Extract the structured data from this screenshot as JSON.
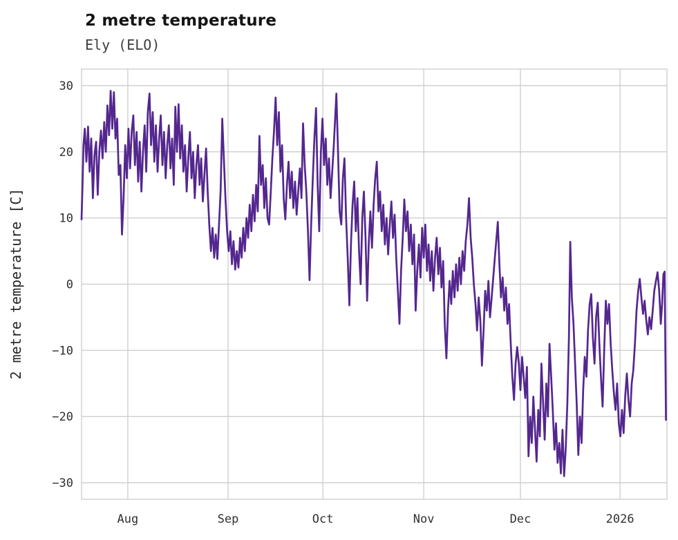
{
  "header": {
    "title": "2 metre temperature",
    "subtitle": "Ely (ELO)"
  },
  "chart_data": {
    "type": "line",
    "title": "2 metre temperature",
    "subtitle": "Ely (ELO)",
    "xlabel": "",
    "ylabel": "2 metre temperature [C]",
    "series_name": "2 metre temperature at Ely (ELO)",
    "line_color": "#54278f",
    "grid_color": "#cccccc",
    "grid": true,
    "legend": "none",
    "ylim": [
      -32.5,
      32.5
    ],
    "xlim_days": [
      0,
      181
    ],
    "yticks": [
      {
        "value": 30,
        "label": "30"
      },
      {
        "value": 20,
        "label": "20"
      },
      {
        "value": 10,
        "label": "10"
      },
      {
        "value": 0,
        "label": "0"
      },
      {
        "value": -10,
        "label": "−10"
      },
      {
        "value": -20,
        "label": "−20"
      },
      {
        "value": -30,
        "label": "−30"
      }
    ],
    "xticks": [
      {
        "label": "Aug",
        "day": 14.3
      },
      {
        "label": "Sep",
        "day": 45.3
      },
      {
        "label": "Oct",
        "day": 74.6
      },
      {
        "label": "Nov",
        "day": 105.8
      },
      {
        "label": "Dec",
        "day": 135.7
      },
      {
        "label": "2026",
        "day": 166.5
      }
    ],
    "points": [
      [
        0,
        9.8
      ],
      [
        0.3,
        15
      ],
      [
        0.6,
        21
      ],
      [
        1,
        23.5
      ],
      [
        1.5,
        18.5
      ],
      [
        2,
        23.8
      ],
      [
        2.5,
        17
      ],
      [
        3,
        22
      ],
      [
        3.5,
        13
      ],
      [
        4,
        19.5
      ],
      [
        4.5,
        21.5
      ],
      [
        5,
        13.5
      ],
      [
        5.5,
        20
      ],
      [
        6,
        23.2
      ],
      [
        6.5,
        19
      ],
      [
        7,
        24.5
      ],
      [
        7.5,
        20
      ],
      [
        8,
        27
      ],
      [
        8.5,
        22.5
      ],
      [
        9,
        29.2
      ],
      [
        9.5,
        23.5
      ],
      [
        10,
        29
      ],
      [
        10.5,
        22
      ],
      [
        11,
        25
      ],
      [
        11.5,
        16.5
      ],
      [
        12,
        18
      ],
      [
        12.5,
        7.5
      ],
      [
        13,
        13
      ],
      [
        13.5,
        21
      ],
      [
        14,
        16
      ],
      [
        14.5,
        23.5
      ],
      [
        15,
        17.5
      ],
      [
        15.5,
        23
      ],
      [
        16,
        25.5
      ],
      [
        16.5,
        18
      ],
      [
        17,
        23
      ],
      [
        17.5,
        15.5
      ],
      [
        18,
        21.5
      ],
      [
        18.5,
        14
      ],
      [
        19,
        20
      ],
      [
        19.5,
        24
      ],
      [
        20,
        17
      ],
      [
        20.5,
        26
      ],
      [
        21,
        28.8
      ],
      [
        21.5,
        21
      ],
      [
        22,
        26
      ],
      [
        22.5,
        18.5
      ],
      [
        23,
        24
      ],
      [
        23.5,
        17
      ],
      [
        24,
        22
      ],
      [
        24.5,
        25.5
      ],
      [
        25,
        18
      ],
      [
        25.5,
        23
      ],
      [
        26,
        16
      ],
      [
        26.5,
        21
      ],
      [
        27,
        24
      ],
      [
        27.5,
        17.5
      ],
      [
        28,
        22
      ],
      [
        28.5,
        15
      ],
      [
        29,
        26.8
      ],
      [
        29.5,
        20
      ],
      [
        30,
        27.2
      ],
      [
        30.5,
        19
      ],
      [
        31,
        24
      ],
      [
        31.5,
        17
      ],
      [
        32,
        21
      ],
      [
        32.5,
        14
      ],
      [
        33,
        19
      ],
      [
        33.5,
        23
      ],
      [
        34,
        16
      ],
      [
        34.5,
        20
      ],
      [
        35,
        13
      ],
      [
        35.5,
        18
      ],
      [
        36,
        21
      ],
      [
        36.5,
        15
      ],
      [
        37,
        19
      ],
      [
        37.5,
        12.5
      ],
      [
        38,
        16.5
      ],
      [
        38.5,
        20.5
      ],
      [
        39,
        14
      ],
      [
        39.5,
        9
      ],
      [
        40,
        5
      ],
      [
        40.5,
        8.5
      ],
      [
        41,
        4
      ],
      [
        41.5,
        7.5
      ],
      [
        42,
        3.8
      ],
      [
        42.5,
        9
      ],
      [
        43,
        14
      ],
      [
        43.5,
        25
      ],
      [
        44,
        19
      ],
      [
        44.5,
        13
      ],
      [
        45,
        8
      ],
      [
        45.5,
        5
      ],
      [
        46,
        8
      ],
      [
        46.5,
        3
      ],
      [
        47,
        6.5
      ],
      [
        47.5,
        2.2
      ],
      [
        48,
        5
      ],
      [
        48.5,
        2.5
      ],
      [
        49,
        7
      ],
      [
        49.5,
        4
      ],
      [
        50,
        8.5
      ],
      [
        50.5,
        5
      ],
      [
        51,
        10
      ],
      [
        51.5,
        7
      ],
      [
        52,
        12
      ],
      [
        52.5,
        8
      ],
      [
        53,
        13.5
      ],
      [
        53.5,
        9.5
      ],
      [
        54,
        15
      ],
      [
        54.5,
        11
      ],
      [
        55,
        22.4
      ],
      [
        55.5,
        15
      ],
      [
        56,
        18
      ],
      [
        56.5,
        11.5
      ],
      [
        57,
        16
      ],
      [
        57.5,
        10
      ],
      [
        58,
        9
      ],
      [
        58.5,
        14
      ],
      [
        59,
        19
      ],
      [
        59.5,
        23
      ],
      [
        60,
        28.2
      ],
      [
        60.5,
        21
      ],
      [
        61,
        26
      ],
      [
        61.5,
        17
      ],
      [
        62,
        21
      ],
      [
        62.5,
        13
      ],
      [
        63,
        9.8
      ],
      [
        63.5,
        15
      ],
      [
        64,
        18.5
      ],
      [
        64.5,
        13
      ],
      [
        65,
        17
      ],
      [
        65.5,
        11.5
      ],
      [
        66,
        15.5
      ],
      [
        66.5,
        10.5
      ],
      [
        67,
        14
      ],
      [
        67.5,
        17.5
      ],
      [
        68,
        13
      ],
      [
        68.5,
        24.3
      ],
      [
        69,
        18
      ],
      [
        69.5,
        14
      ],
      [
        70,
        8
      ],
      [
        70.5,
        0.6
      ],
      [
        71,
        9
      ],
      [
        71.5,
        16
      ],
      [
        72,
        22
      ],
      [
        72.5,
        26.6
      ],
      [
        73,
        15
      ],
      [
        73.5,
        8
      ],
      [
        74,
        20
      ],
      [
        74.5,
        25
      ],
      [
        75,
        18
      ],
      [
        75.5,
        22
      ],
      [
        76,
        15
      ],
      [
        76.5,
        19
      ],
      [
        77,
        13
      ],
      [
        77.5,
        17
      ],
      [
        78,
        21
      ],
      [
        78.8,
        28.8
      ],
      [
        79.3,
        20
      ],
      [
        79.8,
        11
      ],
      [
        80.3,
        9
      ],
      [
        80.8,
        16
      ],
      [
        81.3,
        19
      ],
      [
        81.8,
        10
      ],
      [
        82.3,
        4
      ],
      [
        82.8,
        -3.2
      ],
      [
        83.3,
        6
      ],
      [
        83.8,
        12
      ],
      [
        84.3,
        15.5
      ],
      [
        84.8,
        8
      ],
      [
        85.3,
        13
      ],
      [
        85.8,
        5
      ],
      [
        86.3,
        0
      ],
      [
        86.8,
        10
      ],
      [
        87.3,
        14
      ],
      [
        87.8,
        7
      ],
      [
        88.3,
        -2.5
      ],
      [
        88.8,
        6
      ],
      [
        89.3,
        11
      ],
      [
        89.8,
        5.5
      ],
      [
        90.3,
        12
      ],
      [
        90.8,
        16
      ],
      [
        91.3,
        18.5
      ],
      [
        91.8,
        11
      ],
      [
        92.3,
        14
      ],
      [
        92.8,
        8
      ],
      [
        93.3,
        12
      ],
      [
        93.8,
        6
      ],
      [
        94.3,
        10
      ],
      [
        94.8,
        4.5
      ],
      [
        95.3,
        9
      ],
      [
        95.8,
        12.5
      ],
      [
        96.3,
        7
      ],
      [
        96.8,
        10.5
      ],
      [
        97.3,
        4
      ],
      [
        97.8,
        -1
      ],
      [
        98.3,
        -6
      ],
      [
        98.8,
        2
      ],
      [
        99.3,
        7
      ],
      [
        99.8,
        12.8
      ],
      [
        100.3,
        8
      ],
      [
        100.8,
        11
      ],
      [
        101.3,
        5
      ],
      [
        101.8,
        9
      ],
      [
        102.3,
        3
      ],
      [
        102.8,
        7.5
      ],
      [
        103.3,
        -4
      ],
      [
        103.8,
        2
      ],
      [
        104.3,
        6
      ],
      [
        104.8,
        1
      ],
      [
        105.3,
        8.5
      ],
      [
        105.8,
        4
      ],
      [
        106.3,
        9
      ],
      [
        106.8,
        2
      ],
      [
        107.3,
        6
      ],
      [
        107.8,
        0.5
      ],
      [
        108.3,
        5
      ],
      [
        108.8,
        -1
      ],
      [
        109.3,
        4
      ],
      [
        109.8,
        7
      ],
      [
        110.3,
        1.5
      ],
      [
        110.8,
        5.5
      ],
      [
        111.3,
        -0.5
      ],
      [
        111.8,
        3.5
      ],
      [
        112.3,
        -6
      ],
      [
        112.8,
        -11.2
      ],
      [
        113.3,
        -4
      ],
      [
        113.8,
        0.5
      ],
      [
        114.3,
        -3
      ],
      [
        114.8,
        2
      ],
      [
        115.3,
        -2
      ],
      [
        115.8,
        3
      ],
      [
        116.3,
        -1
      ],
      [
        116.8,
        4
      ],
      [
        117.3,
        0
      ],
      [
        117.8,
        5
      ],
      [
        118.3,
        2
      ],
      [
        118.8,
        6.5
      ],
      [
        119.3,
        9
      ],
      [
        119.8,
        13
      ],
      [
        120.3,
        7
      ],
      [
        120.8,
        4
      ],
      [
        121.3,
        0
      ],
      [
        121.8,
        -3
      ],
      [
        122.3,
        -7
      ],
      [
        122.8,
        -2
      ],
      [
        123.3,
        -5.5
      ],
      [
        123.8,
        -12.3
      ],
      [
        124.3,
        -7
      ],
      [
        124.8,
        -1
      ],
      [
        125.3,
        -4
      ],
      [
        125.8,
        0.5
      ],
      [
        126.3,
        -5
      ],
      [
        126.8,
        -2
      ],
      [
        127.3,
        1
      ],
      [
        127.8,
        4
      ],
      [
        128.3,
        7
      ],
      [
        128.7,
        9.4
      ],
      [
        129.2,
        3
      ],
      [
        129.7,
        -2
      ],
      [
        130.2,
        1
      ],
      [
        130.7,
        -4
      ],
      [
        131.2,
        -0.5
      ],
      [
        131.7,
        -6
      ],
      [
        132.2,
        -3
      ],
      [
        132.7,
        -9
      ],
      [
        133.2,
        -14
      ],
      [
        133.7,
        -17.5
      ],
      [
        134.2,
        -12
      ],
      [
        134.7,
        -9.5
      ],
      [
        135.2,
        -12
      ],
      [
        135.7,
        -16
      ],
      [
        136.2,
        -11
      ],
      [
        136.7,
        -14
      ],
      [
        137.2,
        -17.2
      ],
      [
        137.7,
        -12.5
      ],
      [
        138.2,
        -26
      ],
      [
        138.7,
        -20
      ],
      [
        139.2,
        -24
      ],
      [
        139.7,
        -17
      ],
      [
        140.2,
        -22
      ],
      [
        140.7,
        -26.8
      ],
      [
        141.2,
        -19
      ],
      [
        141.7,
        -23
      ],
      [
        142.2,
        -12
      ],
      [
        142.7,
        -18
      ],
      [
        143.2,
        -23.5
      ],
      [
        143.7,
        -15
      ],
      [
        144.2,
        -20
      ],
      [
        144.7,
        -9
      ],
      [
        145.2,
        -14
      ],
      [
        145.7,
        -19
      ],
      [
        146.2,
        -25
      ],
      [
        146.7,
        -21
      ],
      [
        147.2,
        -27
      ],
      [
        147.7,
        -24
      ],
      [
        148.2,
        -28.6
      ],
      [
        148.7,
        -22
      ],
      [
        149.2,
        -29
      ],
      [
        149.7,
        -25
      ],
      [
        150.2,
        -18
      ],
      [
        150.7,
        -8
      ],
      [
        151.1,
        6.4
      ],
      [
        151.6,
        -2
      ],
      [
        152.1,
        -6
      ],
      [
        152.6,
        -12
      ],
      [
        153.1,
        -18
      ],
      [
        153.6,
        -25.8
      ],
      [
        154.1,
        -20
      ],
      [
        154.6,
        -24
      ],
      [
        155.1,
        -16
      ],
      [
        155.6,
        -11
      ],
      [
        156.1,
        -14
      ],
      [
        156.6,
        -7
      ],
      [
        157.1,
        -3
      ],
      [
        157.6,
        -1.5
      ],
      [
        158.1,
        -8
      ],
      [
        158.6,
        -12
      ],
      [
        159.1,
        -5
      ],
      [
        159.6,
        -2.8
      ],
      [
        160.1,
        -9
      ],
      [
        160.6,
        -14
      ],
      [
        161.1,
        -18.5
      ],
      [
        161.6,
        -10
      ],
      [
        162.1,
        -2.5
      ],
      [
        162.6,
        -6
      ],
      [
        163.1,
        -3
      ],
      [
        163.6,
        -9
      ],
      [
        164.1,
        -13
      ],
      [
        164.6,
        -16.5
      ],
      [
        165.1,
        -19
      ],
      [
        165.6,
        -15
      ],
      [
        166.1,
        -21
      ],
      [
        166.6,
        -23
      ],
      [
        167.1,
        -19
      ],
      [
        167.6,
        -22.5
      ],
      [
        168.1,
        -17
      ],
      [
        168.6,
        -13.5
      ],
      [
        169.1,
        -17.5
      ],
      [
        169.6,
        -20
      ],
      [
        170.1,
        -15
      ],
      [
        170.6,
        -13
      ],
      [
        171.1,
        -9
      ],
      [
        171.6,
        -4
      ],
      [
        172.1,
        -1
      ],
      [
        172.6,
        0.8
      ],
      [
        173.1,
        -2
      ],
      [
        173.6,
        -4.5
      ],
      [
        174.1,
        -2.5
      ],
      [
        174.6,
        -5.5
      ],
      [
        175.1,
        -7.6
      ],
      [
        175.6,
        -5
      ],
      [
        176.1,
        -6.8
      ],
      [
        176.6,
        -4
      ],
      [
        177.1,
        -1
      ],
      [
        177.6,
        0.5
      ],
      [
        178.1,
        1.8
      ],
      [
        178.6,
        -1
      ],
      [
        179.1,
        -6
      ],
      [
        179.5,
        -3
      ],
      [
        179.9,
        1.5
      ],
      [
        180.3,
        1.9
      ],
      [
        180.7,
        -20.5
      ]
    ]
  }
}
